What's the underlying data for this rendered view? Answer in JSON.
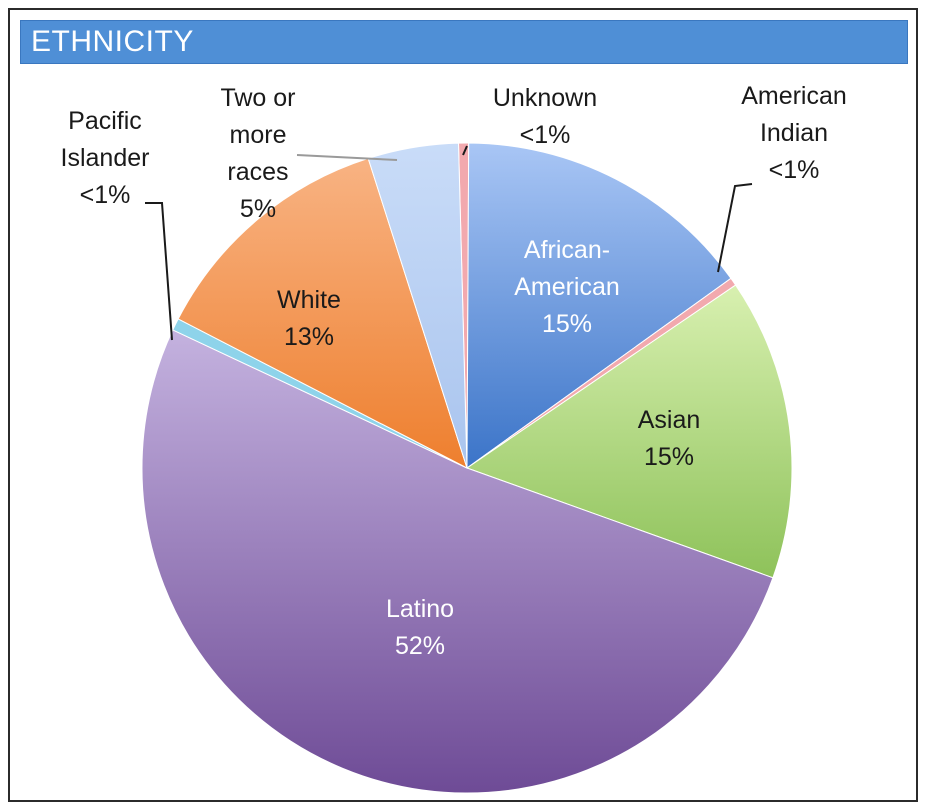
{
  "header": {
    "title": "ETHNICITY"
  },
  "chart_data": {
    "type": "pie",
    "title": "ETHNICITY",
    "slices": [
      {
        "name": "Unknown",
        "label": "<1%",
        "value": 0.5,
        "color": "#f2a9ae"
      },
      {
        "name": "African-American",
        "label": "15%",
        "value": 15,
        "color": "#6f9de6"
      },
      {
        "name": "American Indian",
        "label": "<1%",
        "value": 0.4,
        "color": "#f2a9ae"
      },
      {
        "name": "Asian",
        "label": "15%",
        "value": 15,
        "color": "#b6dc7c"
      },
      {
        "name": "Latino",
        "label": "52%",
        "value": 51.5,
        "color": "#9f82c2"
      },
      {
        "name": "Pacific Islander",
        "label": "<1%",
        "value": 0.6,
        "color": "#8ed3ea"
      },
      {
        "name": "White",
        "label": "13%",
        "value": 12.5,
        "color": "#f5954e"
      },
      {
        "name": "Two or more races",
        "label": "5%",
        "value": 4.5,
        "color": "#b9d3f5"
      }
    ],
    "start_angle_deg": -1.5,
    "direction": "clockwise",
    "slice_labels": [
      {
        "lines": [
          "African-",
          "American",
          "15%"
        ],
        "color": "#ffffff"
      },
      {
        "lines": [
          "Asian",
          "15%"
        ],
        "color": "#1a1a1a"
      },
      {
        "lines": [
          "Latino",
          "52%"
        ],
        "color": "#ffffff"
      },
      {
        "lines": [
          "White",
          "13%"
        ],
        "color": "#1a1a1a"
      }
    ],
    "callout_labels": [
      {
        "lines": [
          "Unknown",
          "<1%"
        ]
      },
      {
        "lines": [
          "American",
          "Indian",
          "<1%"
        ]
      },
      {
        "lines": [
          "Two or",
          "more",
          "races",
          "5%"
        ]
      },
      {
        "lines": [
          "Pacific",
          "Islander",
          "<1%"
        ]
      }
    ]
  }
}
